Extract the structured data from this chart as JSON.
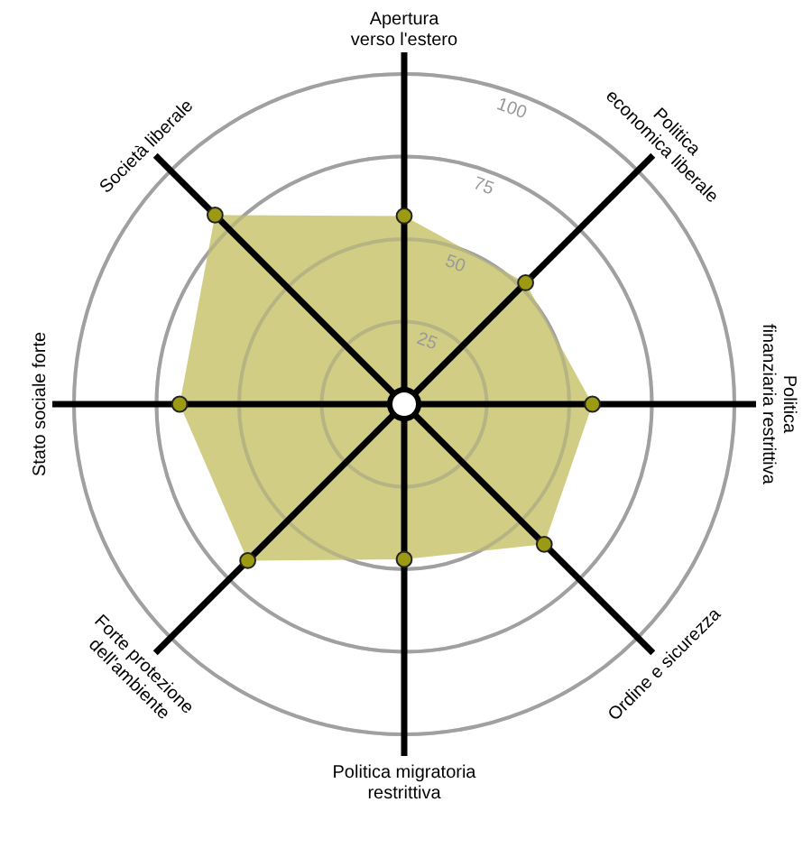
{
  "chart_data": {
    "type": "radar",
    "categories": [
      "Apertura\nverso l'estero",
      "Politica\neconomica liberale",
      "Politica\nfinanziaria restrittiva",
      "Ordine e sicurezza",
      "Politica migratoria\nrestrittiva",
      "Forte protezione\ndell'ambiente",
      "Stato sociale forte",
      "Società liberale"
    ],
    "series": [
      {
        "color": "#c9c46e",
        "values": [
          57,
          52,
          57,
          60,
          47,
          67,
          68,
          81
        ]
      }
    ],
    "ylim": [
      0,
      100
    ],
    "yticks": [
      25,
      50,
      75,
      100
    ],
    "grid": true,
    "marker": "circle"
  }
}
